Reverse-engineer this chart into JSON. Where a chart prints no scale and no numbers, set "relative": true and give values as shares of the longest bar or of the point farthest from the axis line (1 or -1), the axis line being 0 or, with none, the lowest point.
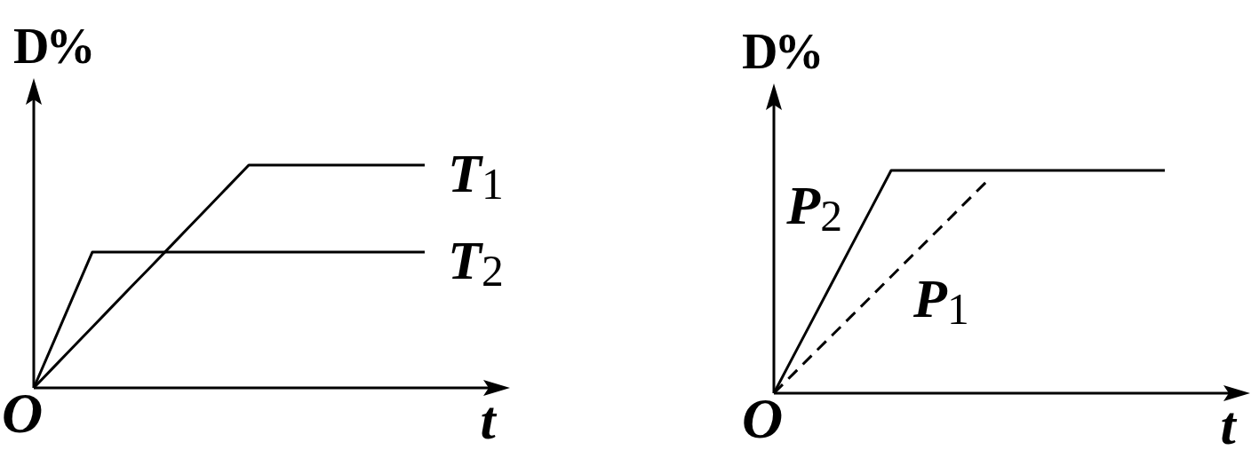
{
  "chart_data": [
    {
      "type": "line",
      "relative": true,
      "ylabel": "D%",
      "xlabel": "t",
      "annotations": [
        "O"
      ],
      "categories": [
        null,
        null,
        null,
        null,
        null,
        null,
        null,
        null,
        null,
        null,
        null,
        null,
        null,
        null,
        null,
        null,
        null,
        null,
        null,
        null,
        null
      ],
      "series": [
        {
          "name": "T$_{1}$",
          "color": "#000000",
          "values": [
            0,
            0.091,
            0.182,
            0.273,
            0.364,
            0.455,
            0.545,
            0.636,
            0.727,
            0.818,
            0.909,
            1,
            1,
            1,
            1,
            1,
            1,
            1,
            1,
            1,
            1
          ]
        },
        {
          "name": "T$_{2}$",
          "color": "#000000",
          "values": [
            0,
            0.203,
            0.407,
            0.61,
            0.61,
            0.61,
            0.61,
            0.61,
            0.61,
            0.61,
            0.61,
            0.61,
            0.61,
            0.61,
            0.61,
            0.61,
            0.61,
            0.61,
            0.61,
            0.61,
            0.61
          ]
        }
      ]
    },
    {
      "type": "line",
      "relative": true,
      "ylabel": "D%",
      "xlabel": "t",
      "annotations": [
        "O"
      ],
      "categories": [
        null,
        null,
        null,
        null,
        null,
        null,
        null,
        null,
        null,
        null,
        null,
        null,
        null,
        null,
        null,
        null,
        null,
        null,
        null,
        null,
        null
      ],
      "series": [
        {
          "name": "P$_{2}$",
          "color": "#000000",
          "values": [
            0,
            0.167,
            0.333,
            0.5,
            0.667,
            0.833,
            1,
            1,
            1,
            1,
            1,
            1,
            1,
            1,
            1,
            1,
            1,
            1,
            1,
            1,
            1
          ]
        },
        {
          "name": "P$_{1}$",
          "color": "#000000",
          "line_style": "dashed",
          "values": [
            0,
            0.087,
            0.175,
            0.262,
            0.349,
            0.436,
            0.524,
            0.611,
            0.698,
            0.785,
            0.873,
            0.96,
            null,
            null,
            null,
            null,
            null,
            null,
            null,
            null,
            null
          ]
        }
      ]
    }
  ]
}
